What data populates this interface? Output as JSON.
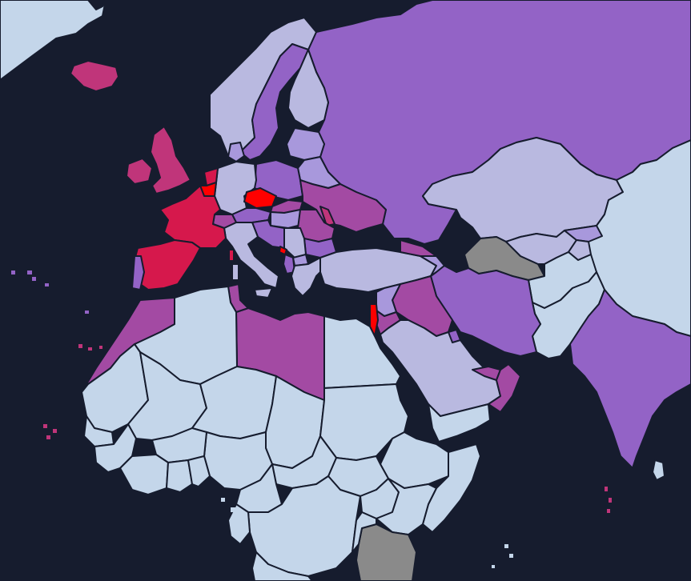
{
  "map": {
    "ocean_color": "#161c2e",
    "border_color": "#161c2e",
    "palette": {
      "pale_blue": "#c4d6ea",
      "periwinkle": "#b9b9e0",
      "lavender": "#a898dc",
      "purple": "#9363c6",
      "magenta": "#a34aa3",
      "pink": "#c0357a",
      "crimson": "#d6184c",
      "red": "#ff0000",
      "no_data": "#8a8a8a"
    }
  }
}
